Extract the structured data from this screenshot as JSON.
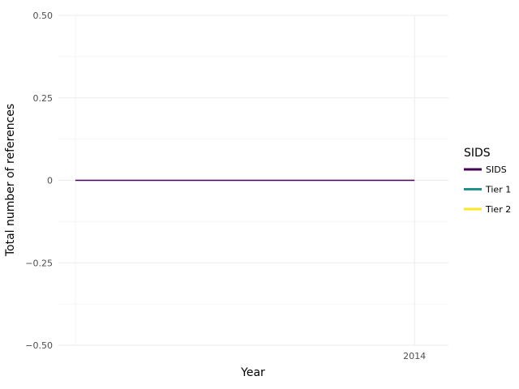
{
  "chart_data": {
    "type": "line",
    "title": "",
    "xlabel": "Year",
    "ylabel": "Total number of references",
    "x": [
      2004,
      2014
    ],
    "x_ticks": [
      2014
    ],
    "x_tick_labels": [
      "2014"
    ],
    "xlim": [
      2003.5,
      2015
    ],
    "ylim": [
      -0.5,
      0.5
    ],
    "y_ticks": [
      -0.5,
      -0.25,
      0,
      0.25,
      0.5
    ],
    "y_tick_labels": [
      "−0.50",
      "−0.25",
      "0",
      "0.25",
      "0.50"
    ],
    "grid": true,
    "legend": {
      "title": "SIDS",
      "position": "right",
      "entries": [
        {
          "label": "SIDS",
          "color": "#440154"
        },
        {
          "label": "Tier 1",
          "color": "#21918c"
        },
        {
          "label": "Tier 2",
          "color": "#fde725"
        }
      ]
    },
    "series": [
      {
        "name": "SIDS",
        "color": "#440154",
        "values": [
          0,
          0
        ]
      }
    ]
  }
}
